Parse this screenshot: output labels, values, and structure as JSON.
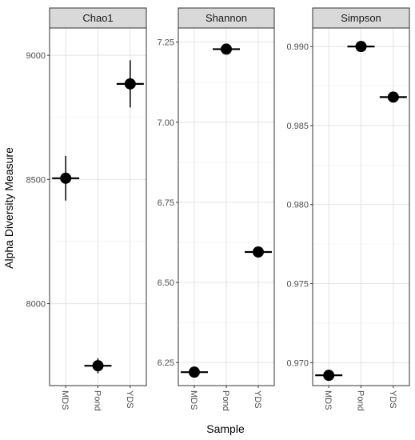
{
  "chart_data": {
    "type": "scatter",
    "xlabel": "Sample",
    "ylabel": "Alpha Diversity Measure",
    "categories": [
      "MDS",
      "Pond",
      "YDS"
    ],
    "legend": "none",
    "grid": true,
    "panels": [
      {
        "title": "Chao1",
        "ylim": [
          7670,
          9110
        ],
        "yticks": [
          8000,
          8500,
          9000
        ],
        "tick_labels": [
          "8000",
          "8500",
          "9000"
        ],
        "points": [
          {
            "x": "MDS",
            "y": 8505,
            "err": 90
          },
          {
            "x": "Pond",
            "y": 7750,
            "err": 30
          },
          {
            "x": "YDS",
            "y": 8885,
            "err": 95
          }
        ]
      },
      {
        "title": "Shannon",
        "ylim": [
          6.178,
          7.294
        ],
        "yticks": [
          6.25,
          6.5,
          6.75,
          7.0,
          7.25
        ],
        "tick_labels": [
          "6.25",
          "6.50",
          "6.75",
          "7.00",
          "7.25"
        ],
        "points": [
          {
            "x": "MDS",
            "y": 6.22,
            "err": 0
          },
          {
            "x": "Pond",
            "y": 7.228,
            "err": 0
          },
          {
            "x": "YDS",
            "y": 6.595,
            "err": 0
          }
        ]
      },
      {
        "title": "Simpson",
        "ylim": [
          0.96855,
          0.99117
        ],
        "yticks": [
          0.97,
          0.975,
          0.98,
          0.985,
          0.99
        ],
        "tick_labels": [
          "0.970",
          "0.975",
          "0.980",
          "0.985",
          "0.990"
        ],
        "points": [
          {
            "x": "MDS",
            "y": 0.9692,
            "err": 0
          },
          {
            "x": "Pond",
            "y": 0.99,
            "err": 0
          },
          {
            "x": "YDS",
            "y": 0.9868,
            "err": 0
          }
        ]
      }
    ]
  }
}
